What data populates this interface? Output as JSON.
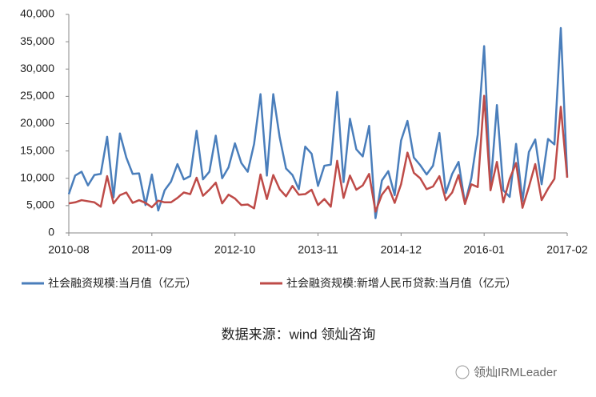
{
  "chart_data": {
    "type": "line",
    "categories": [
      "2010-08",
      null,
      null,
      null,
      null,
      null,
      null,
      null,
      null,
      null,
      null,
      null,
      null,
      "2011-09",
      null,
      null,
      null,
      null,
      null,
      null,
      null,
      null,
      null,
      null,
      null,
      null,
      "2012-10",
      null,
      null,
      null,
      null,
      null,
      null,
      null,
      null,
      null,
      null,
      null,
      null,
      "2013-11",
      null,
      null,
      null,
      null,
      null,
      null,
      null,
      null,
      null,
      null,
      null,
      null,
      "2014-12",
      null,
      null,
      null,
      null,
      null,
      null,
      null,
      null,
      null,
      null,
      null,
      null,
      "2016-01",
      null,
      null,
      null,
      null,
      null,
      null,
      null,
      null,
      null,
      null,
      null,
      null,
      "2017-02"
    ],
    "series": [
      {
        "name": "社会融资规模:当月值（亿元）",
        "color": "#4a7ebb",
        "values": [
          7100,
          10500,
          11200,
          8700,
          10600,
          10800,
          17600,
          6500,
          18200,
          13800,
          10800,
          10900,
          5100,
          10700,
          4100,
          7800,
          9400,
          12600,
          9800,
          10400,
          18700,
          9800,
          11200,
          17800,
          10000,
          12000,
          16400,
          12800,
          11200,
          16300,
          25400,
          10500,
          25400,
          17500,
          11800,
          10600,
          8000,
          15800,
          14500,
          8600,
          12300,
          12500,
          25800,
          9300,
          20900,
          15300,
          14000,
          19600,
          2700,
          9600,
          11300,
          6900,
          16900,
          20500,
          13800,
          12400,
          10700,
          12300,
          18300,
          7300,
          10800,
          13000,
          5400,
          10000,
          18000,
          34200,
          8300,
          23400,
          7800,
          6600,
          16300,
          5800,
          14800,
          17100,
          8900,
          17200,
          16200,
          37500,
          10300
        ]
      },
      {
        "name": "社会融资规模:新增人民币贷款:当月值（亿元）",
        "color": "#be4b48",
        "values": [
          5400,
          5600,
          6000,
          5800,
          5600,
          4800,
          10400,
          5400,
          6900,
          7400,
          5500,
          6000,
          5500,
          4700,
          5900,
          5600,
          5600,
          6400,
          7400,
          7100,
          10100,
          6800,
          7900,
          9200,
          5400,
          7000,
          6300,
          5100,
          5200,
          4500,
          10700,
          6200,
          10600,
          8000,
          6700,
          8600,
          7000,
          7100,
          7900,
          5100,
          6200,
          4800,
          13200,
          6400,
          10500,
          7900,
          8700,
          10800,
          3900,
          7000,
          8500,
          5500,
          8900,
          14700,
          11000,
          10000,
          8000,
          8500,
          10400,
          6000,
          7400,
          10600,
          5300,
          8900,
          8400,
          25100,
          7800,
          13000,
          5600,
          9900,
          12800,
          4600,
          8400,
          12600,
          6000,
          8100,
          9900,
          23100,
          10100
        ]
      }
    ],
    "ylim": [
      0,
      40000
    ],
    "yticks": [
      0,
      {
        "value": 5000,
        "label": "5,000"
      },
      {
        "value": 10000,
        "label": "10,000"
      },
      {
        "value": 15000,
        "label": "15,000"
      },
      {
        "value": 20000,
        "label": "20,000"
      },
      {
        "value": 25000,
        "label": "25,000"
      },
      {
        "value": 30000,
        "label": "30,000"
      },
      {
        "value": 35000,
        "label": "35,000"
      },
      {
        "value": 40000,
        "label": "40,000"
      }
    ],
    "grid": false
  },
  "source": "数据来源：wind 领灿咨询",
  "watermark": "领灿IRMLeader"
}
